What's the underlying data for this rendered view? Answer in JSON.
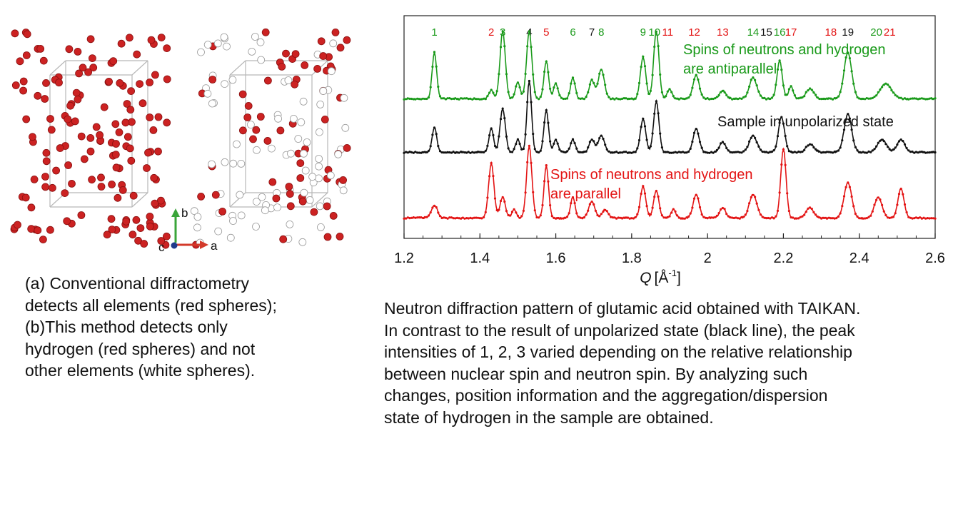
{
  "colors": {
    "green": "#1a9a1a",
    "black": "#111111",
    "red": "#e31414",
    "atom_red": "#cc2222",
    "atom_white": "#ffffff"
  },
  "crystal": {
    "axes": {
      "b": "b",
      "c": "c",
      "a": "a"
    }
  },
  "caption_left": [
    "(a) Conventional diffractometry",
    "detects all elements (red spheres);",
    "(b)This method detects only",
    "hydrogen (red spheres) and not",
    "other elements (white spheres)."
  ],
  "caption_right": [
    "Neutron diffraction pattern of glutamic acid obtained with TAIKAN.",
    "In contrast to the result of unpolarized state (black line), the peak",
    "intensities of 1, 2, 3 varied depending on the relative relationship",
    "between nuclear spin and neutron spin. By analyzing such",
    "changes, position information and the aggregation/dispersion",
    "state of hydrogen in the sample are obtained."
  ],
  "chart_data": {
    "type": "line",
    "xlabel": "Q [Å⁻¹]",
    "xlabel_var": "Q",
    "xlabel_unit": "[Å",
    "xlabel_sup": "-1",
    "xlabel_end": "]",
    "xlim": [
      1.2,
      2.6
    ],
    "xticks": [
      1.2,
      1.4,
      1.6,
      1.8,
      2.0,
      2.2,
      2.4,
      2.6
    ],
    "xtick_labels": [
      "1.2",
      "1.4",
      "1.6",
      "1.8",
      "2",
      "2.2",
      "2.4",
      "2.6"
    ],
    "grid": false,
    "peak_labels": [
      {
        "text": "1",
        "q": 1.28,
        "color": "green"
      },
      {
        "text": "2",
        "q": 1.43,
        "color": "red"
      },
      {
        "text": "3",
        "q": 1.46,
        "color": "green"
      },
      {
        "text": "4",
        "q": 1.53,
        "color": "black"
      },
      {
        "text": "5",
        "q": 1.575,
        "color": "red"
      },
      {
        "text": "6",
        "q": 1.645,
        "color": "green"
      },
      {
        "text": "7",
        "q": 1.695,
        "color": "black"
      },
      {
        "text": "8",
        "q": 1.72,
        "color": "green"
      },
      {
        "text": "9",
        "q": 1.83,
        "color": "green"
      },
      {
        "text": "10",
        "q": 1.86,
        "color": "green"
      },
      {
        "text": "11",
        "q": 1.895,
        "color": "red"
      },
      {
        "text": "12",
        "q": 1.965,
        "color": "red"
      },
      {
        "text": "13",
        "q": 2.04,
        "color": "red"
      },
      {
        "text": "14",
        "q": 2.12,
        "color": "green"
      },
      {
        "text": "15",
        "q": 2.155,
        "color": "black"
      },
      {
        "text": "16",
        "q": 2.19,
        "color": "green"
      },
      {
        "text": "17",
        "q": 2.22,
        "color": "red"
      },
      {
        "text": "18",
        "q": 2.325,
        "color": "red"
      },
      {
        "text": "19",
        "q": 2.37,
        "color": "black"
      },
      {
        "text": "20",
        "q": 2.445,
        "color": "green"
      },
      {
        "text": "21",
        "q": 2.48,
        "color": "red"
      }
    ],
    "annotations": {
      "green_1": "Spins of neutrons and hydrogen",
      "green_2": "are antiparallel",
      "black_1": "Sample in unpolarized state",
      "red_1": "Spins of neutrons and hydrogen",
      "red_2": "are parallel"
    },
    "series": [
      {
        "color": "green",
        "baseline": 0.03,
        "peaks": [
          [
            1.28,
            0.55,
            0.006
          ],
          [
            1.43,
            0.1,
            0.006
          ],
          [
            1.46,
            0.8,
            0.007
          ],
          [
            1.5,
            0.2,
            0.006
          ],
          [
            1.53,
            0.8,
            0.007
          ],
          [
            1.575,
            0.45,
            0.006
          ],
          [
            1.6,
            0.18,
            0.006
          ],
          [
            1.645,
            0.25,
            0.006
          ],
          [
            1.695,
            0.22,
            0.007
          ],
          [
            1.72,
            0.35,
            0.008
          ],
          [
            1.83,
            0.5,
            0.007
          ],
          [
            1.865,
            0.8,
            0.007
          ],
          [
            1.9,
            0.12,
            0.006
          ],
          [
            1.97,
            0.28,
            0.008
          ],
          [
            2.04,
            0.1,
            0.008
          ],
          [
            2.12,
            0.25,
            0.01
          ],
          [
            2.19,
            0.45,
            0.007
          ],
          [
            2.22,
            0.15,
            0.006
          ],
          [
            2.27,
            0.12,
            0.01
          ],
          [
            2.37,
            0.55,
            0.01
          ],
          [
            2.47,
            0.18,
            0.015
          ]
        ]
      },
      {
        "color": "black",
        "baseline": 0.03,
        "peaks": [
          [
            1.28,
            0.3,
            0.006
          ],
          [
            1.43,
            0.28,
            0.006
          ],
          [
            1.46,
            0.52,
            0.007
          ],
          [
            1.5,
            0.15,
            0.006
          ],
          [
            1.53,
            0.85,
            0.006
          ],
          [
            1.575,
            0.5,
            0.006
          ],
          [
            1.6,
            0.15,
            0.006
          ],
          [
            1.645,
            0.15,
            0.006
          ],
          [
            1.695,
            0.15,
            0.007
          ],
          [
            1.72,
            0.2,
            0.008
          ],
          [
            1.83,
            0.4,
            0.007
          ],
          [
            1.865,
            0.6,
            0.007
          ],
          [
            1.97,
            0.28,
            0.008
          ],
          [
            2.04,
            0.12,
            0.008
          ],
          [
            2.12,
            0.2,
            0.01
          ],
          [
            2.195,
            0.42,
            0.008
          ],
          [
            2.27,
            0.1,
            0.01
          ],
          [
            2.37,
            0.45,
            0.01
          ],
          [
            2.46,
            0.15,
            0.012
          ],
          [
            2.51,
            0.15,
            0.01
          ]
        ]
      },
      {
        "color": "red",
        "baseline": 0.03,
        "peaks": [
          [
            1.28,
            0.15,
            0.008
          ],
          [
            1.43,
            0.65,
            0.007
          ],
          [
            1.46,
            0.25,
            0.007
          ],
          [
            1.49,
            0.1,
            0.006
          ],
          [
            1.53,
            0.85,
            0.007
          ],
          [
            1.575,
            0.62,
            0.006
          ],
          [
            1.645,
            0.25,
            0.006
          ],
          [
            1.695,
            0.2,
            0.008
          ],
          [
            1.73,
            0.1,
            0.008
          ],
          [
            1.83,
            0.38,
            0.007
          ],
          [
            1.865,
            0.32,
            0.007
          ],
          [
            1.91,
            0.1,
            0.006
          ],
          [
            1.97,
            0.28,
            0.008
          ],
          [
            2.04,
            0.12,
            0.008
          ],
          [
            2.12,
            0.28,
            0.01
          ],
          [
            2.2,
            0.82,
            0.007
          ],
          [
            2.27,
            0.12,
            0.01
          ],
          [
            2.37,
            0.42,
            0.01
          ],
          [
            2.45,
            0.25,
            0.01
          ],
          [
            2.51,
            0.35,
            0.008
          ]
        ]
      }
    ]
  }
}
